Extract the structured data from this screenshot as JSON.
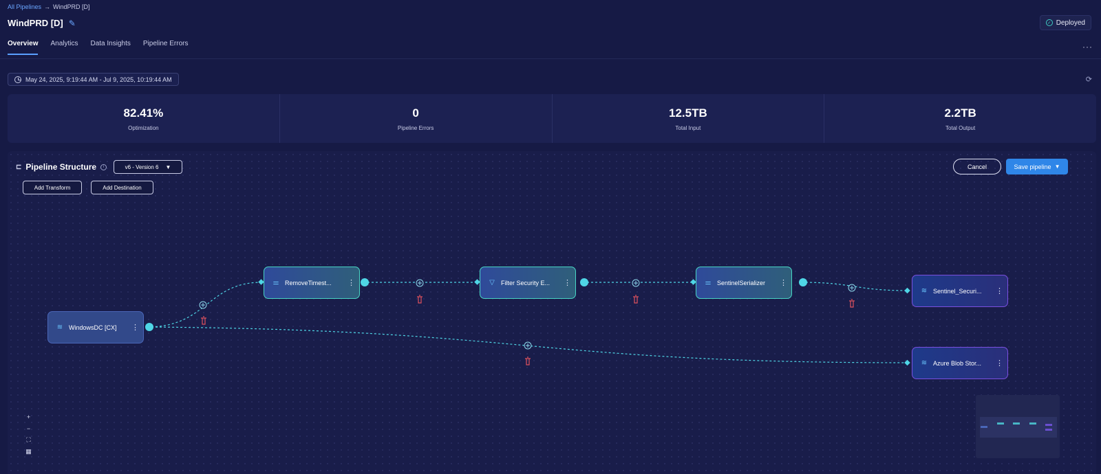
{
  "breadcrumb": {
    "root": "All Pipelines",
    "separator": "→",
    "current": "WindPRD [D]"
  },
  "page": {
    "title": "WindPRD [D]",
    "status": "Deployed"
  },
  "tabs": [
    {
      "label": "Overview",
      "active": true
    },
    {
      "label": "Analytics",
      "active": false
    },
    {
      "label": "Data Insights",
      "active": false
    },
    {
      "label": "Pipeline Errors",
      "active": false
    }
  ],
  "date_range": "May 24, 2025, 9:19:44 AM - Jul 9, 2025, 10:19:44 AM",
  "stats": [
    {
      "value": "82.41%",
      "label": "Optimization"
    },
    {
      "value": "0",
      "label": "Pipeline Errors"
    },
    {
      "value": "12.5TB",
      "label": "Total Input"
    },
    {
      "value": "2.2TB",
      "label": "Total Output"
    }
  ],
  "pipeline": {
    "title": "Pipeline Structure",
    "version": "v6 - Version 6",
    "add_transform": "Add Transform",
    "add_destination": "Add Destination",
    "cancel": "Cancel",
    "save": "Save pipeline",
    "nodes": {
      "source": "WindowsDC [CX]",
      "transform1": "RemoveTimest...",
      "transform2": "Filter Security E...",
      "transform3": "SentinelSerializer",
      "dest1": "Sentinel_Securi...",
      "dest2": "Azure Blob Stor..."
    }
  },
  "colors": {
    "accent": "#2f86e8",
    "edge": "#4fd6e6",
    "delete": "#e0525e",
    "transform_border": "#48d6c5",
    "destination_border": "#7b4fe0"
  },
  "icons": {
    "edit": "pencil-icon",
    "status": "check-circle-icon",
    "date": "clock-icon",
    "refresh": "refresh-icon",
    "transform": "sliders-icon",
    "filter": "filter-icon",
    "source": "stack-icon",
    "destination": "stack-icon",
    "delete": "trash-icon",
    "add": "plus-circle-icon"
  }
}
